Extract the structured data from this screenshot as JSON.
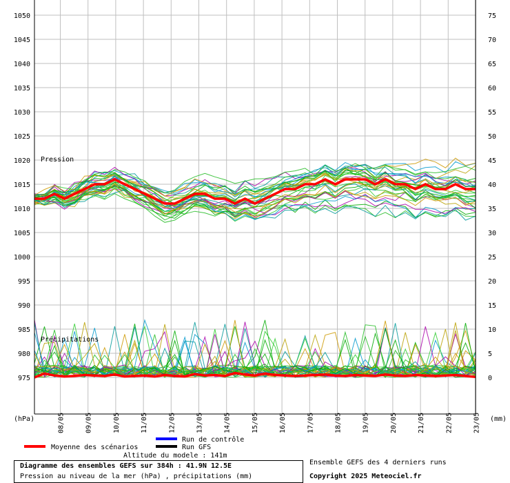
{
  "chart_data": {
    "type": "line",
    "title": "Diagramme des ensembles GEFS sur 384h : 41.9N 12.5E",
    "subtitle": "Pression au niveau de la mer (hPa) , précipitations (mm)",
    "left_axis": {
      "label": "(hPa)",
      "ylim": [
        970,
        1052
      ],
      "ticks": [
        "1050",
        "1045",
        "1040",
        "1035",
        "1030",
        "1025",
        "1020",
        "1015",
        "1010",
        "1005",
        "1000",
        "995",
        "990",
        "985",
        "980",
        "975"
      ]
    },
    "right_axis": {
      "label": "(mm)",
      "ylim": [
        0,
        75
      ],
      "ticks": [
        "75",
        "70",
        "65",
        "60",
        "55",
        "50",
        "45",
        "40",
        "35",
        "30",
        "25",
        "20",
        "15",
        "10",
        "5",
        "0"
      ]
    },
    "x_ticks": [
      "08/05",
      "09/05",
      "10/05",
      "11/05",
      "12/05",
      "13/05",
      "14/05",
      "15/05",
      "16/05",
      "17/05",
      "18/05",
      "19/05",
      "20/05",
      "21/05",
      "22/05",
      "23/05"
    ],
    "grid": true,
    "annotations": {
      "pressure": "Pression",
      "precip": "Précipitations"
    },
    "series": [
      {
        "name": "Moyenne des scénarios",
        "color": "#ff0000",
        "pressure_hpa": [
          1012,
          1012,
          1013,
          1012,
          1013,
          1014,
          1015,
          1015,
          1016,
          1015,
          1014,
          1013,
          1012,
          1011,
          1011,
          1012,
          1013,
          1013,
          1012,
          1012,
          1011,
          1012,
          1011,
          1012,
          1013,
          1014,
          1014,
          1015,
          1015,
          1016,
          1015,
          1016,
          1016,
          1016,
          1015,
          1016,
          1015,
          1015,
          1014,
          1015,
          1014,
          1014,
          1015,
          1014,
          1014
        ],
        "precip_mm": [
          0,
          0.8,
          0.4,
          0.2,
          0.3,
          0.5,
          0.4,
          0.3,
          0.6,
          0.2,
          0.3,
          0.4,
          0.2,
          0.5,
          0.3,
          0.2,
          0.7,
          0.4,
          0.5,
          0.3,
          0.9,
          0.6,
          0.4,
          0.8,
          0.5,
          0.4,
          0.3,
          0.4,
          0.5,
          0.6,
          0.4,
          0.3,
          0.5,
          0.4,
          0.3,
          0.6,
          0.4,
          0.3,
          0.5,
          0.4,
          0.3,
          0.4,
          0.5,
          0.3,
          0.1
        ]
      },
      {
        "name": "Run de contrôle",
        "color": "#0000ff"
      },
      {
        "name": "Run GFS",
        "color": "#000000"
      }
    ]
  },
  "legend": {
    "mean_label": "Moyenne des scénarios",
    "control_label": "Run de contrôle",
    "gfs_label": "Run GFS"
  },
  "model_altitude": "Altitude du modele : 141m",
  "footer": {
    "ensemble_note": "Ensemble GEFS des 4 derniers runs",
    "copyright": "Copyright 2025 Meteociel.fr"
  }
}
